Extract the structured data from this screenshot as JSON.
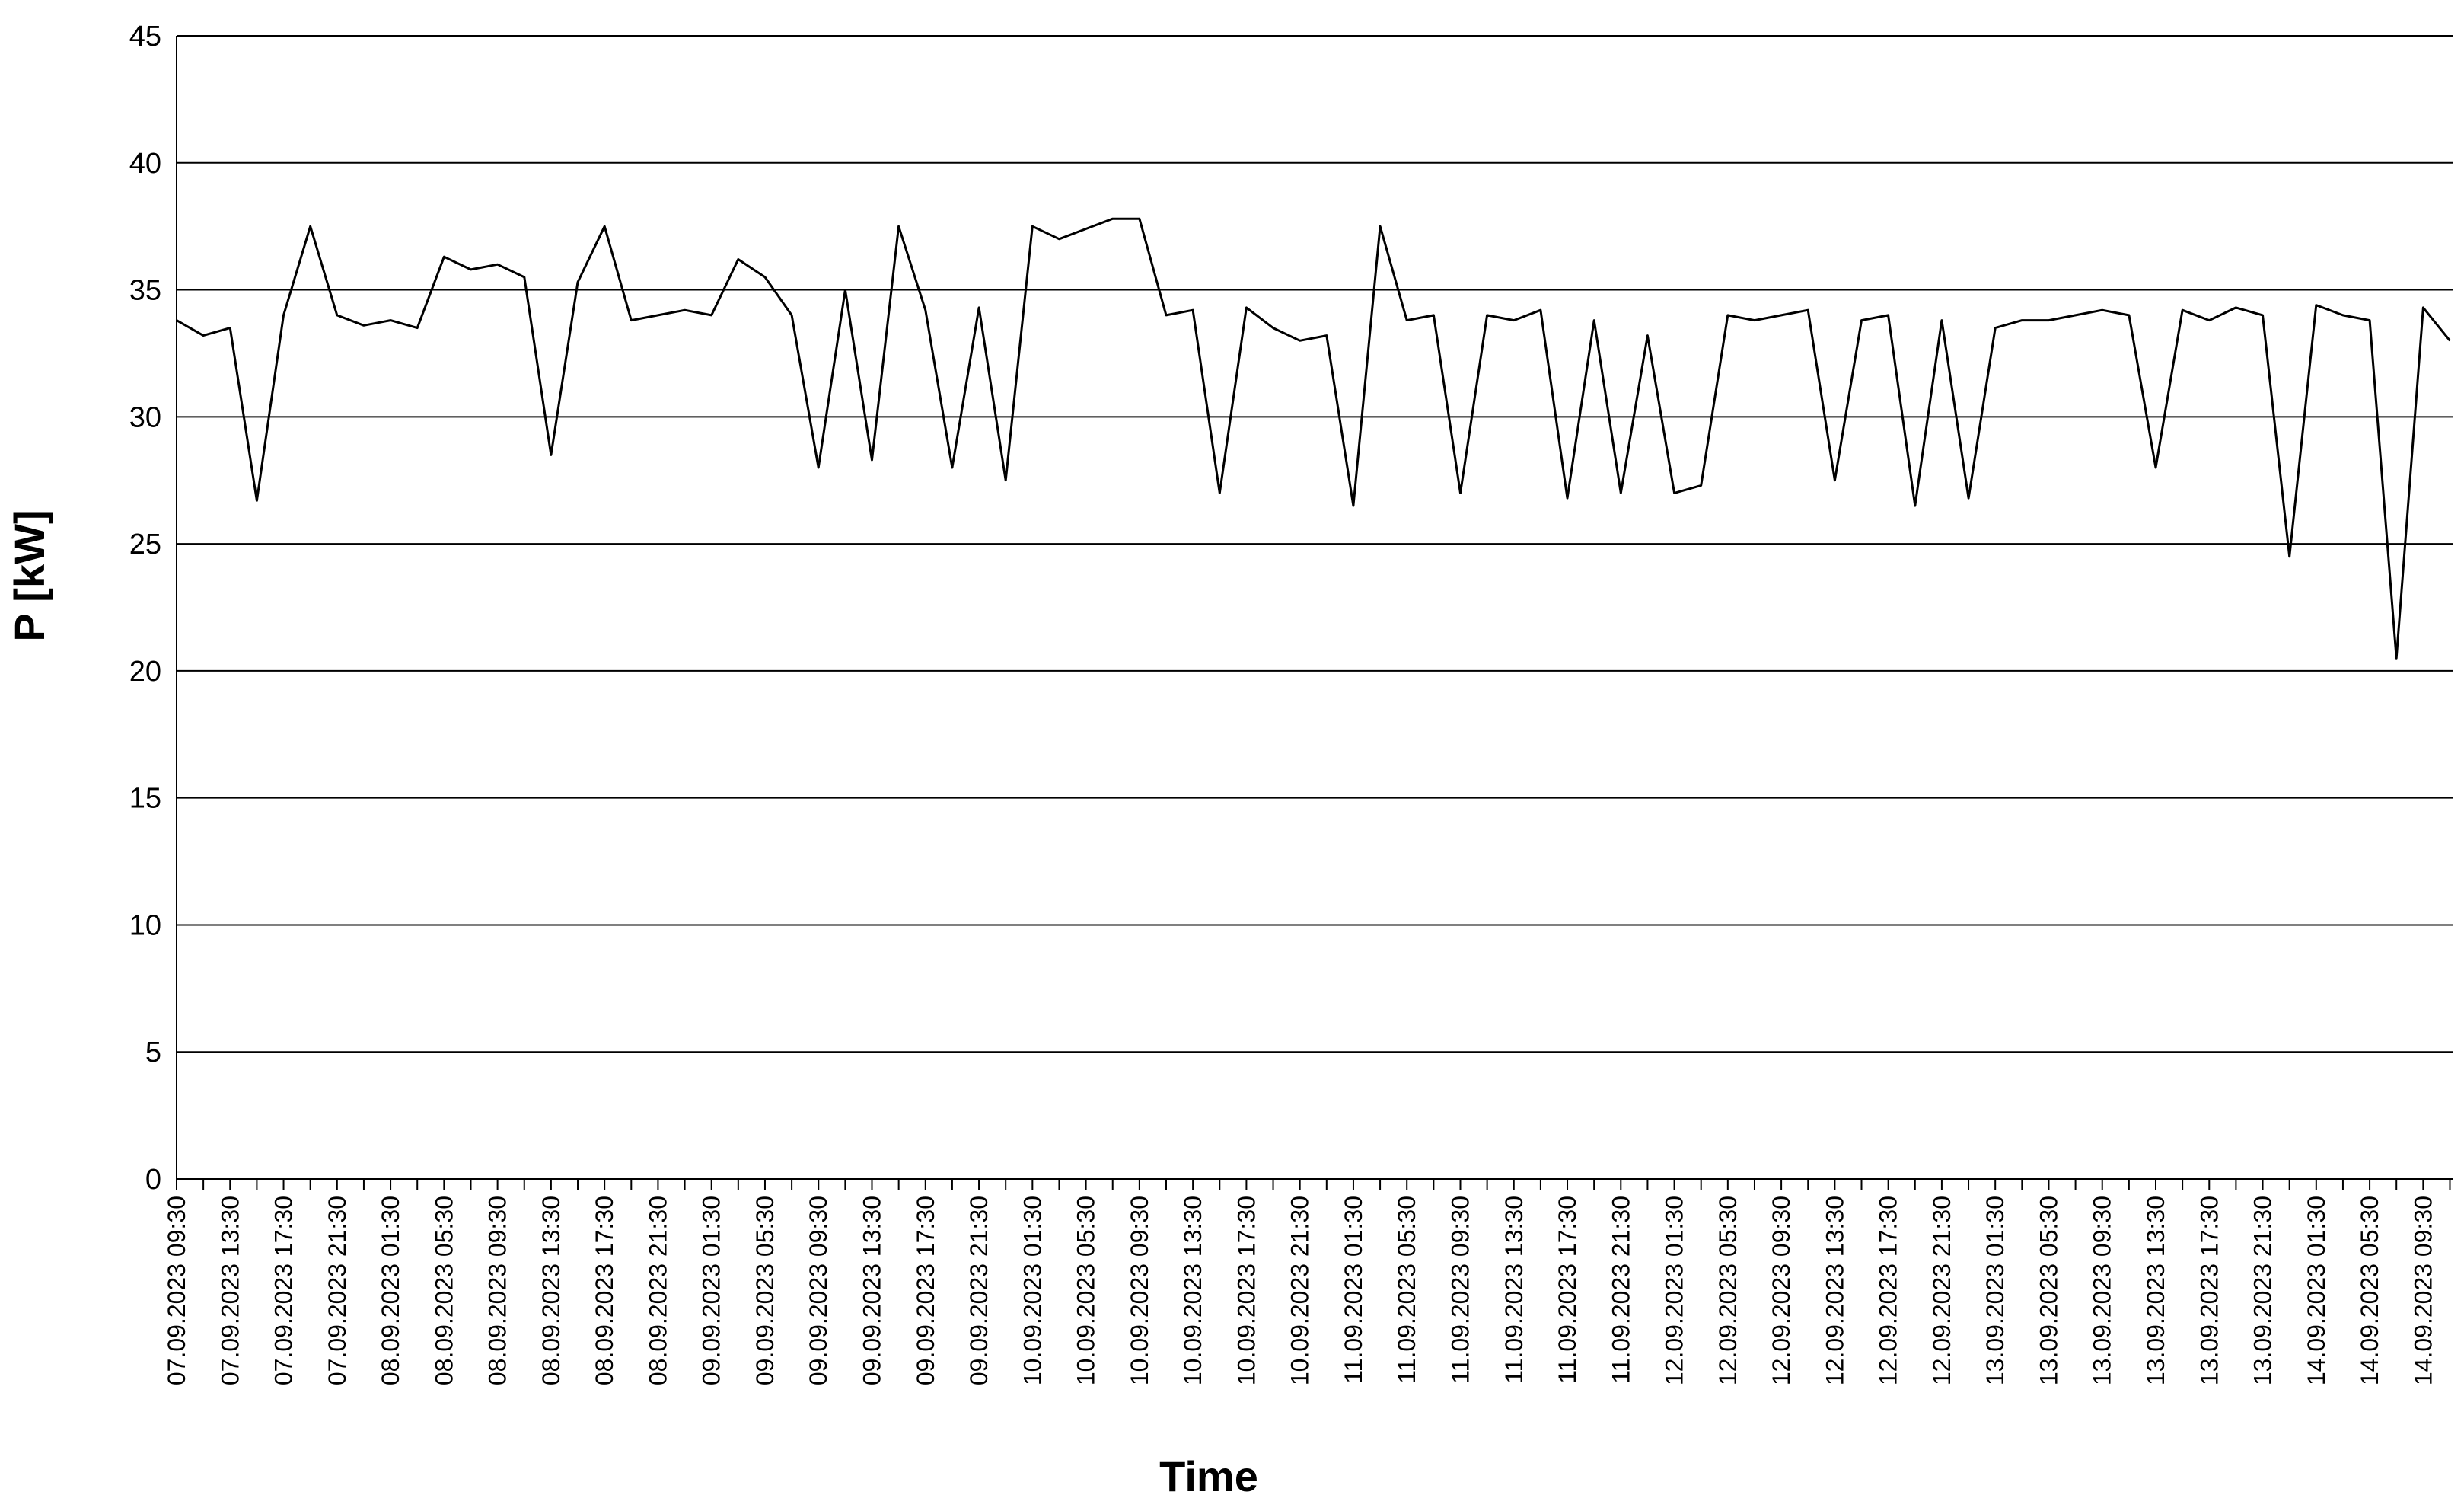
{
  "chart_data": {
    "type": "line",
    "title": "",
    "xlabel": "Time",
    "ylabel": "P [kW]",
    "ylim": [
      0,
      45
    ],
    "y_ticks": [
      0,
      5,
      10,
      15,
      20,
      25,
      30,
      35,
      40,
      45
    ],
    "grid": "horizontal",
    "legend": "none",
    "line_color": "#000000",
    "x_tick_labels": [
      "07.09.2023 09:30",
      "07.09.2023 13:30",
      "07.09.2023 17:30",
      "07.09.2023 21:30",
      "08.09.2023 01:30",
      "08.09.2023 05:30",
      "08.09.2023 09:30",
      "08.09.2023 13:30",
      "08.09.2023 17:30",
      "08.09.2023 21:30",
      "09.09.2023 01:30",
      "09.09.2023 05:30",
      "09.09.2023 09:30",
      "09.09.2023 13:30",
      "09.09.2023 17:30",
      "09.09.2023 21:30",
      "10.09.2023 01:30",
      "10.09.2023 05:30",
      "10.09.2023 09:30",
      "10.09.2023 13:30",
      "10.09.2023 17:30",
      "10.09.2023 21:30",
      "11.09.2023 01:30",
      "11.09.2023 05:30",
      "11.09.2023 09:30",
      "11.09.2023 13:30",
      "11.09.2023 17:30",
      "11.09.2023 21:30",
      "12.09.2023 01:30",
      "12.09.2023 05:30",
      "12.09.2023 09:30",
      "12.09.2023 13:30",
      "12.09.2023 17:30",
      "12.09.2023 21:30",
      "13.09.2023 01:30",
      "13.09.2023 05:30",
      "13.09.2023 09:30",
      "13.09.2023 13:30",
      "13.09.2023 17:30",
      "13.09.2023 21:30",
      "14.09.2023 01:30",
      "14.09.2023 05:30",
      "14.09.2023 09:30"
    ],
    "series": [
      {
        "x": [
          "07.09.2023 09:30",
          "07.09.2023 11:30",
          "07.09.2023 13:30",
          "07.09.2023 15:30",
          "07.09.2023 17:30",
          "07.09.2023 19:30",
          "07.09.2023 21:30",
          "07.09.2023 23:30",
          "08.09.2023 01:30",
          "08.09.2023 03:30",
          "08.09.2023 05:30",
          "08.09.2023 07:30",
          "08.09.2023 09:30",
          "08.09.2023 11:30",
          "08.09.2023 13:30",
          "08.09.2023 15:30",
          "08.09.2023 17:30",
          "08.09.2023 19:30",
          "08.09.2023 21:30",
          "08.09.2023 23:30",
          "09.09.2023 01:30",
          "09.09.2023 03:30",
          "09.09.2023 05:30",
          "09.09.2023 07:30",
          "09.09.2023 09:30",
          "09.09.2023 11:30",
          "09.09.2023 13:30",
          "09.09.2023 15:30",
          "09.09.2023 17:30",
          "09.09.2023 19:30",
          "09.09.2023 21:30",
          "09.09.2023 23:30",
          "10.09.2023 01:30",
          "10.09.2023 03:30",
          "10.09.2023 05:30",
          "10.09.2023 07:30",
          "10.09.2023 09:30",
          "10.09.2023 11:30",
          "10.09.2023 13:30",
          "10.09.2023 15:30",
          "10.09.2023 17:30",
          "10.09.2023 19:30",
          "10.09.2023 21:30",
          "10.09.2023 23:30",
          "11.09.2023 01:30",
          "11.09.2023 03:30",
          "11.09.2023 05:30",
          "11.09.2023 07:30",
          "11.09.2023 09:30",
          "11.09.2023 11:30",
          "11.09.2023 13:30",
          "11.09.2023 15:30",
          "11.09.2023 17:30",
          "11.09.2023 19:30",
          "11.09.2023 21:30",
          "11.09.2023 23:30",
          "12.09.2023 01:30",
          "12.09.2023 03:30",
          "12.09.2023 05:30",
          "12.09.2023 07:30",
          "12.09.2023 09:30",
          "12.09.2023 11:30",
          "12.09.2023 13:30",
          "12.09.2023 15:30",
          "12.09.2023 17:30",
          "12.09.2023 19:30",
          "12.09.2023 21:30",
          "12.09.2023 23:30",
          "13.09.2023 01:30",
          "13.09.2023 03:30",
          "13.09.2023 05:30",
          "13.09.2023 07:30",
          "13.09.2023 09:30",
          "13.09.2023 11:30",
          "13.09.2023 13:30",
          "13.09.2023 15:30",
          "13.09.2023 17:30",
          "13.09.2023 19:30",
          "13.09.2023 21:30",
          "13.09.2023 23:30",
          "14.09.2023 01:30",
          "14.09.2023 03:30",
          "14.09.2023 05:30",
          "14.09.2023 07:30",
          "14.09.2023 09:30",
          "14.09.2023 11:30"
        ],
        "y": [
          33.8,
          33.2,
          33.5,
          26.7,
          34.0,
          37.5,
          34.0,
          33.6,
          33.8,
          33.5,
          36.3,
          35.8,
          36.0,
          35.5,
          28.5,
          35.3,
          37.5,
          33.8,
          34.0,
          34.2,
          34.0,
          36.2,
          35.5,
          34.0,
          28.0,
          35.0,
          28.3,
          37.5,
          34.2,
          28.0,
          34.3,
          27.5,
          37.5,
          37.0,
          37.4,
          37.8,
          37.8,
          34.0,
          34.2,
          27.0,
          34.3,
          33.5,
          33.0,
          33.2,
          26.5,
          37.5,
          33.8,
          34.0,
          27.0,
          34.0,
          33.8,
          34.2,
          26.8,
          33.8,
          27.0,
          33.2,
          27.0,
          27.3,
          34.0,
          33.8,
          34.0,
          34.2,
          27.5,
          33.8,
          34.0,
          26.5,
          33.8,
          26.8,
          33.5,
          33.8,
          33.8,
          34.0,
          34.2,
          34.0,
          28.0,
          34.2,
          33.8,
          34.3,
          34.0,
          24.5,
          34.4,
          34.0,
          33.8,
          20.5,
          34.3,
          33.0
        ]
      }
    ]
  }
}
